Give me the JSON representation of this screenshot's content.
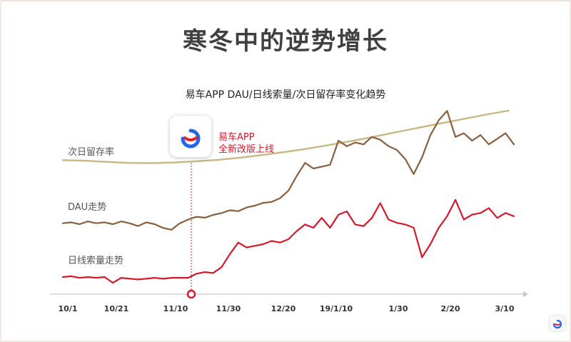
{
  "page": {
    "title": "寒冬中的逆势增长"
  },
  "chart_data": {
    "type": "line",
    "title": "易车APP DAU/日线索量/次日留存率变化趋势",
    "xlabel": "",
    "ylabel": "",
    "categories": [
      "10/1",
      "10/21",
      "11/10",
      "11/30",
      "12/20",
      "19/1/10",
      "1/30",
      "2/20",
      "3/10"
    ],
    "series": [
      {
        "name": "次日留存率",
        "color": "#c8b683",
        "x": [
          0,
          8,
          16,
          24,
          32,
          40,
          48,
          56,
          64,
          72,
          80,
          88,
          96,
          104,
          112,
          120,
          128,
          136,
          144,
          152,
          160
        ],
        "values": [
          0.28,
          0.25,
          0.19,
          0.14,
          0.13,
          0.16,
          0.22,
          0.3,
          0.41,
          0.55,
          0.7,
          0.87,
          1.06,
          1.26,
          1.48,
          1.71,
          1.94,
          2.16,
          2.38,
          2.6,
          2.8
        ]
      },
      {
        "name": "DAU走势",
        "color": "#8b5e3c",
        "x": [
          0,
          3,
          6,
          9,
          12,
          15,
          18,
          21,
          24,
          27,
          30,
          33,
          36,
          39,
          42,
          45,
          48,
          51,
          54,
          57,
          60,
          63,
          66,
          69,
          72,
          75,
          78,
          81,
          84,
          87,
          90,
          93,
          96,
          99,
          102,
          105,
          108,
          111,
          114,
          117,
          120,
          123,
          126,
          129,
          132,
          135,
          138,
          141,
          144,
          147,
          150,
          153,
          156,
          159,
          162
        ],
        "values": [
          0.05,
          0.1,
          0.0,
          0.15,
          0.05,
          0.1,
          0.0,
          0.15,
          0.05,
          -0.1,
          0.1,
          0.0,
          -0.2,
          -0.3,
          0.05,
          0.25,
          0.4,
          0.35,
          0.5,
          0.6,
          0.75,
          0.7,
          0.9,
          1.0,
          1.15,
          1.2,
          1.4,
          1.8,
          2.6,
          3.3,
          3.0,
          3.1,
          3.2,
          4.5,
          4.2,
          4.4,
          4.3,
          4.7,
          4.55,
          4.2,
          4.0,
          3.5,
          2.7,
          3.6,
          4.8,
          5.6,
          6.1,
          4.7,
          4.9,
          4.5,
          4.8,
          4.3,
          4.6,
          4.9,
          4.3
        ]
      },
      {
        "name": "日线索量走势",
        "color": "#d8172a",
        "x": [
          0,
          3,
          6,
          9,
          12,
          15,
          18,
          21,
          24,
          27,
          30,
          33,
          36,
          39,
          42,
          45,
          48,
          51,
          54,
          57,
          60,
          63,
          66,
          69,
          72,
          75,
          78,
          81,
          84,
          87,
          90,
          93,
          96,
          99,
          102,
          105,
          108,
          111,
          114,
          117,
          120,
          123,
          126,
          129,
          132,
          135,
          138,
          141,
          144,
          147,
          150,
          153,
          156,
          159,
          162
        ],
        "values": [
          0.0,
          0.05,
          -0.05,
          0.0,
          -0.05,
          0.0,
          -0.35,
          -0.05,
          -0.1,
          -0.15,
          -0.1,
          -0.05,
          -0.1,
          -0.05,
          -0.05,
          -0.05,
          0.2,
          0.3,
          0.25,
          0.6,
          1.4,
          2.1,
          1.8,
          1.9,
          2.0,
          2.2,
          2.1,
          2.3,
          2.8,
          3.2,
          3.0,
          3.6,
          3.0,
          3.8,
          4.0,
          3.2,
          3.1,
          3.6,
          4.5,
          3.5,
          3.3,
          3.2,
          3.0,
          1.2,
          2.0,
          3.0,
          3.7,
          4.7,
          3.5,
          3.8,
          3.9,
          4.2,
          3.6,
          3.9,
          3.7
        ]
      }
    ],
    "annotations": {
      "launch_note_line1": "易车APP",
      "launch_note_line2": "全新改版上线"
    },
    "logo_icon": "yiche-logo-icon",
    "corner_icon": "yiche-small-logo-icon"
  }
}
